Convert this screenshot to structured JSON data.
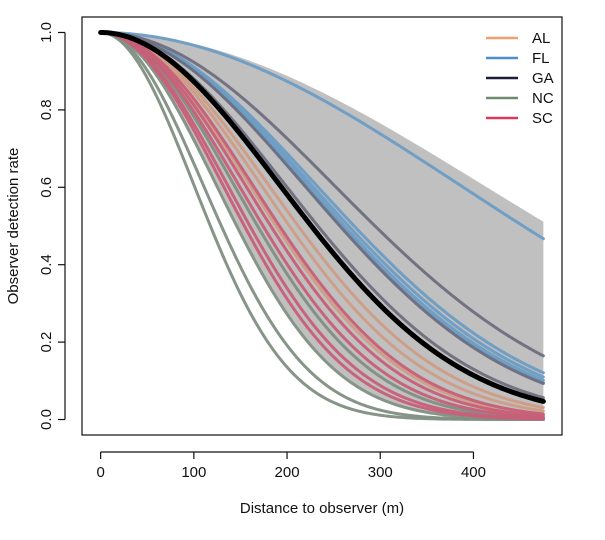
{
  "chart_data": {
    "type": "line",
    "title": "",
    "xlabel": "Distance to observer (m)",
    "ylabel": "Observer detection rate",
    "xlim": [
      -20,
      495
    ],
    "ylim": [
      -0.04,
      1.04
    ],
    "xticks": [
      0,
      100,
      200,
      300,
      400
    ],
    "yticks": [
      0.0,
      0.2,
      0.4,
      0.6,
      0.8,
      1.0
    ],
    "xtick_labels": [
      "0",
      "100",
      "200",
      "300",
      "400"
    ],
    "ytick_labels": [
      "0.0",
      "0.2",
      "0.4",
      "0.6",
      "0.8",
      "1.0"
    ],
    "x_range": [
      0,
      475
    ],
    "legend_position": "top-right",
    "legend": [
      {
        "label": "AL",
        "color": "#f0a070"
      },
      {
        "label": "FL",
        "color": "#4a90d0"
      },
      {
        "label": "GA",
        "color": "#1c1c3c"
      },
      {
        "label": "NC",
        "color": "#6f8a72"
      },
      {
        "label": "SC",
        "color": "#d83a5a"
      }
    ],
    "confidence_band": {
      "color": "#c0c0c0",
      "upper_scale_m": 410,
      "lower_scale_m": 125
    },
    "overall_curve": {
      "color": "#000000",
      "scale_m": 192
    },
    "series": [
      {
        "name": "AL",
        "color": "#cf9c85",
        "scale_m": [
          180,
          172,
          160
        ]
      },
      {
        "name": "FL",
        "color": "#6c9cc4",
        "scale_m": [
          385,
          231,
          226,
          222,
          219
        ]
      },
      {
        "name": "GA",
        "color": "#6e6e80",
        "scale_m": [
          250,
          218,
          198
        ]
      },
      {
        "name": "NC",
        "color": "#7f8f82",
        "scale_m": [
          143,
          124,
          110,
          100
        ]
      },
      {
        "name": "SC",
        "color": "#c75f78",
        "scale_m": [
          163,
          155,
          148,
          136,
          131
        ]
      }
    ]
  }
}
